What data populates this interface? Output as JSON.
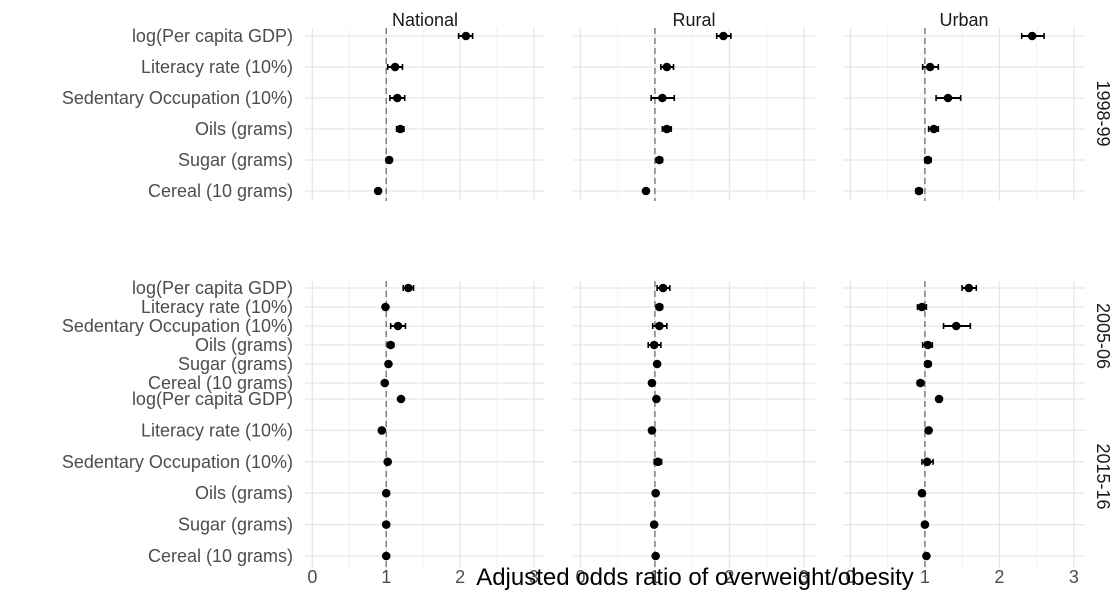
{
  "chart_data": {
    "type": "forest",
    "xlabel": "Adjusted odds ratio of overweight/obesity",
    "ylabel": "",
    "xlim": [
      -0.1,
      3.15
    ],
    "xticks": [
      0,
      1,
      2,
      3
    ],
    "reference_line": 1,
    "grid": true,
    "columns": [
      "National",
      "Rural",
      "Urban"
    ],
    "rows": [
      "1998-99",
      "2005-06",
      "2015-16"
    ],
    "variables": [
      "log(Per capita GDP)",
      "Literacy rate (10%)",
      "Sedentary Occupation (10%)",
      "Oils (grams)",
      "Sugar (grams)",
      "Cereal (10 grams)"
    ],
    "estimates": {
      "1998-99": {
        "National": [
          {
            "or": 2.08,
            "lo": 1.98,
            "hi": 2.17
          },
          {
            "or": 1.12,
            "lo": 1.02,
            "hi": 1.22
          },
          {
            "or": 1.15,
            "lo": 1.05,
            "hi": 1.25
          },
          {
            "or": 1.19,
            "lo": 1.14,
            "hi": 1.24
          },
          {
            "or": 1.04,
            "lo": 1.01,
            "hi": 1.07
          },
          {
            "or": 0.89,
            "lo": 0.86,
            "hi": 0.92
          }
        ],
        "Rural": [
          {
            "or": 1.92,
            "lo": 1.83,
            "hi": 2.02
          },
          {
            "or": 1.16,
            "lo": 1.08,
            "hi": 1.25
          },
          {
            "or": 1.1,
            "lo": 0.95,
            "hi": 1.26
          },
          {
            "or": 1.16,
            "lo": 1.1,
            "hi": 1.22
          },
          {
            "or": 1.06,
            "lo": 1.02,
            "hi": 1.1
          },
          {
            "or": 0.88,
            "lo": 0.85,
            "hi": 0.91
          }
        ],
        "Urban": [
          {
            "or": 2.44,
            "lo": 2.3,
            "hi": 2.6
          },
          {
            "or": 1.07,
            "lo": 0.97,
            "hi": 1.18
          },
          {
            "or": 1.31,
            "lo": 1.15,
            "hi": 1.48
          },
          {
            "or": 1.12,
            "lo": 1.05,
            "hi": 1.18
          },
          {
            "or": 1.04,
            "lo": 1.0,
            "hi": 1.08
          },
          {
            "or": 0.92,
            "lo": 0.88,
            "hi": 0.96
          }
        ]
      },
      "2005-06": {
        "National": [
          {
            "or": 1.3,
            "lo": 1.23,
            "hi": 1.37
          },
          {
            "or": 0.99,
            "lo": 0.96,
            "hi": 1.02
          },
          {
            "or": 1.16,
            "lo": 1.06,
            "hi": 1.26
          },
          {
            "or": 1.06,
            "lo": 1.02,
            "hi": 1.1
          },
          {
            "or": 1.03,
            "lo": 1.0,
            "hi": 1.06
          },
          {
            "or": 0.98,
            "lo": 0.95,
            "hi": 1.01
          }
        ],
        "Rural": [
          {
            "or": 1.11,
            "lo": 1.03,
            "hi": 1.2
          },
          {
            "or": 1.06,
            "lo": 1.02,
            "hi": 1.1
          },
          {
            "or": 1.06,
            "lo": 0.97,
            "hi": 1.16
          },
          {
            "or": 0.99,
            "lo": 0.91,
            "hi": 1.08
          },
          {
            "or": 1.03,
            "lo": 1.0,
            "hi": 1.06
          },
          {
            "or": 0.96,
            "lo": 0.93,
            "hi": 0.99
          }
        ],
        "Urban": [
          {
            "or": 1.59,
            "lo": 1.5,
            "hi": 1.69
          },
          {
            "or": 0.96,
            "lo": 0.9,
            "hi": 1.02
          },
          {
            "or": 1.42,
            "lo": 1.25,
            "hi": 1.61
          },
          {
            "or": 1.04,
            "lo": 0.97,
            "hi": 1.1
          },
          {
            "or": 1.04,
            "lo": 1.0,
            "hi": 1.08
          },
          {
            "or": 0.94,
            "lo": 0.9,
            "hi": 0.98
          }
        ]
      },
      "2015-16": {
        "National": [
          {
            "or": 1.2,
            "lo": 1.17,
            "hi": 1.23
          },
          {
            "or": 0.94,
            "lo": 0.92,
            "hi": 0.96
          },
          {
            "or": 1.02,
            "lo": 0.99,
            "hi": 1.05
          },
          {
            "or": 1.0,
            "lo": 0.98,
            "hi": 1.02
          },
          {
            "or": 1.0,
            "lo": 0.98,
            "hi": 1.02
          },
          {
            "or": 1.0,
            "lo": 0.98,
            "hi": 1.02
          }
        ],
        "Rural": [
          {
            "or": 1.02,
            "lo": 0.99,
            "hi": 1.05
          },
          {
            "or": 0.96,
            "lo": 0.94,
            "hi": 0.98
          },
          {
            "or": 1.04,
            "lo": 0.99,
            "hi": 1.09
          },
          {
            "or": 1.01,
            "lo": 0.99,
            "hi": 1.03
          },
          {
            "or": 0.99,
            "lo": 0.97,
            "hi": 1.01
          },
          {
            "or": 1.01,
            "lo": 0.99,
            "hi": 1.03
          }
        ],
        "Urban": [
          {
            "or": 1.19,
            "lo": 1.16,
            "hi": 1.22
          },
          {
            "or": 1.05,
            "lo": 1.02,
            "hi": 1.08
          },
          {
            "or": 1.03,
            "lo": 0.96,
            "hi": 1.11
          },
          {
            "or": 0.96,
            "lo": 0.94,
            "hi": 0.98
          },
          {
            "or": 1.0,
            "lo": 0.97,
            "hi": 1.03
          },
          {
            "or": 1.02,
            "lo": 0.99,
            "hi": 1.05
          }
        ]
      }
    }
  }
}
